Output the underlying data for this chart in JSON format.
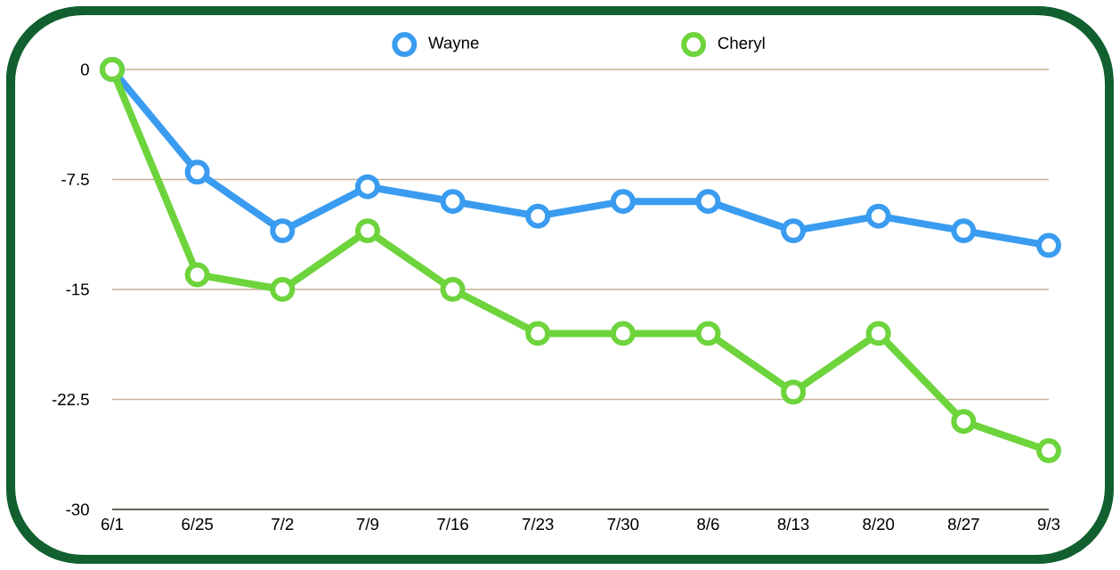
{
  "chart_data": {
    "type": "line",
    "categories": [
      "6/1",
      "6/25",
      "7/2",
      "7/9",
      "7/16",
      "7/23",
      "7/30",
      "8/6",
      "8/13",
      "8/20",
      "8/27",
      "9/3"
    ],
    "series": [
      {
        "name": "Wayne",
        "color": "#3a9cf0",
        "values": [
          0,
          -7,
          -11,
          -8,
          -9,
          -10,
          -9,
          -9,
          -11,
          -10,
          -11,
          -12
        ]
      },
      {
        "name": "Cheryl",
        "color": "#6dd43c",
        "values": [
          0,
          -14,
          -15,
          -11,
          -15,
          -18,
          -18,
          -18,
          -22,
          -18,
          -24,
          -26
        ]
      }
    ],
    "ylim": [
      -30,
      0
    ],
    "yticks": [
      -30,
      -22.5,
      -15,
      -7.5,
      0
    ],
    "grid": "y",
    "legend": "top",
    "marker": "circle",
    "line_style": "solid"
  }
}
